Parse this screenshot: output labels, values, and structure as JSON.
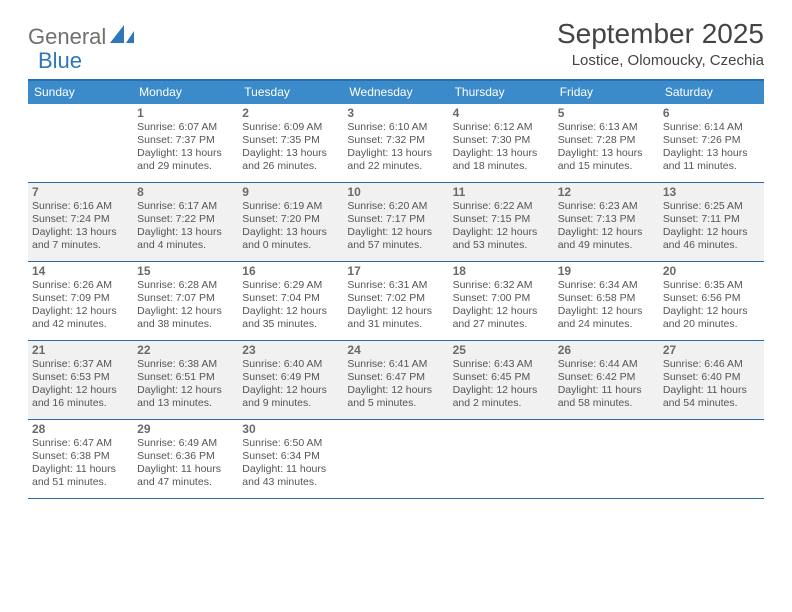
{
  "logo": {
    "part1": "General",
    "part2": "Blue"
  },
  "title": "September 2025",
  "location": "Lostice, Olomoucky, Czechia",
  "colors": {
    "headerBar": "#3b8bca",
    "headerTopBorder": "#276fb5",
    "rowBorder": "#2a6aa5",
    "shaded": "#f1f1f2",
    "text": "#555555",
    "logoGray": "#707070",
    "logoBlue": "#2e77b8"
  },
  "weekdays": [
    "Sunday",
    "Monday",
    "Tuesday",
    "Wednesday",
    "Thursday",
    "Friday",
    "Saturday"
  ],
  "weeks": [
    {
      "shaded": false,
      "days": [
        {
          "n": "",
          "sr": "",
          "ss": "",
          "dl1": "",
          "dl2": ""
        },
        {
          "n": "1",
          "sr": "Sunrise: 6:07 AM",
          "ss": "Sunset: 7:37 PM",
          "dl1": "Daylight: 13 hours",
          "dl2": "and 29 minutes."
        },
        {
          "n": "2",
          "sr": "Sunrise: 6:09 AM",
          "ss": "Sunset: 7:35 PM",
          "dl1": "Daylight: 13 hours",
          "dl2": "and 26 minutes."
        },
        {
          "n": "3",
          "sr": "Sunrise: 6:10 AM",
          "ss": "Sunset: 7:32 PM",
          "dl1": "Daylight: 13 hours",
          "dl2": "and 22 minutes."
        },
        {
          "n": "4",
          "sr": "Sunrise: 6:12 AM",
          "ss": "Sunset: 7:30 PM",
          "dl1": "Daylight: 13 hours",
          "dl2": "and 18 minutes."
        },
        {
          "n": "5",
          "sr": "Sunrise: 6:13 AM",
          "ss": "Sunset: 7:28 PM",
          "dl1": "Daylight: 13 hours",
          "dl2": "and 15 minutes."
        },
        {
          "n": "6",
          "sr": "Sunrise: 6:14 AM",
          "ss": "Sunset: 7:26 PM",
          "dl1": "Daylight: 13 hours",
          "dl2": "and 11 minutes."
        }
      ]
    },
    {
      "shaded": true,
      "days": [
        {
          "n": "7",
          "sr": "Sunrise: 6:16 AM",
          "ss": "Sunset: 7:24 PM",
          "dl1": "Daylight: 13 hours",
          "dl2": "and 7 minutes."
        },
        {
          "n": "8",
          "sr": "Sunrise: 6:17 AM",
          "ss": "Sunset: 7:22 PM",
          "dl1": "Daylight: 13 hours",
          "dl2": "and 4 minutes."
        },
        {
          "n": "9",
          "sr": "Sunrise: 6:19 AM",
          "ss": "Sunset: 7:20 PM",
          "dl1": "Daylight: 13 hours",
          "dl2": "and 0 minutes."
        },
        {
          "n": "10",
          "sr": "Sunrise: 6:20 AM",
          "ss": "Sunset: 7:17 PM",
          "dl1": "Daylight: 12 hours",
          "dl2": "and 57 minutes."
        },
        {
          "n": "11",
          "sr": "Sunrise: 6:22 AM",
          "ss": "Sunset: 7:15 PM",
          "dl1": "Daylight: 12 hours",
          "dl2": "and 53 minutes."
        },
        {
          "n": "12",
          "sr": "Sunrise: 6:23 AM",
          "ss": "Sunset: 7:13 PM",
          "dl1": "Daylight: 12 hours",
          "dl2": "and 49 minutes."
        },
        {
          "n": "13",
          "sr": "Sunrise: 6:25 AM",
          "ss": "Sunset: 7:11 PM",
          "dl1": "Daylight: 12 hours",
          "dl2": "and 46 minutes."
        }
      ]
    },
    {
      "shaded": false,
      "days": [
        {
          "n": "14",
          "sr": "Sunrise: 6:26 AM",
          "ss": "Sunset: 7:09 PM",
          "dl1": "Daylight: 12 hours",
          "dl2": "and 42 minutes."
        },
        {
          "n": "15",
          "sr": "Sunrise: 6:28 AM",
          "ss": "Sunset: 7:07 PM",
          "dl1": "Daylight: 12 hours",
          "dl2": "and 38 minutes."
        },
        {
          "n": "16",
          "sr": "Sunrise: 6:29 AM",
          "ss": "Sunset: 7:04 PM",
          "dl1": "Daylight: 12 hours",
          "dl2": "and 35 minutes."
        },
        {
          "n": "17",
          "sr": "Sunrise: 6:31 AM",
          "ss": "Sunset: 7:02 PM",
          "dl1": "Daylight: 12 hours",
          "dl2": "and 31 minutes."
        },
        {
          "n": "18",
          "sr": "Sunrise: 6:32 AM",
          "ss": "Sunset: 7:00 PM",
          "dl1": "Daylight: 12 hours",
          "dl2": "and 27 minutes."
        },
        {
          "n": "19",
          "sr": "Sunrise: 6:34 AM",
          "ss": "Sunset: 6:58 PM",
          "dl1": "Daylight: 12 hours",
          "dl2": "and 24 minutes."
        },
        {
          "n": "20",
          "sr": "Sunrise: 6:35 AM",
          "ss": "Sunset: 6:56 PM",
          "dl1": "Daylight: 12 hours",
          "dl2": "and 20 minutes."
        }
      ]
    },
    {
      "shaded": true,
      "days": [
        {
          "n": "21",
          "sr": "Sunrise: 6:37 AM",
          "ss": "Sunset: 6:53 PM",
          "dl1": "Daylight: 12 hours",
          "dl2": "and 16 minutes."
        },
        {
          "n": "22",
          "sr": "Sunrise: 6:38 AM",
          "ss": "Sunset: 6:51 PM",
          "dl1": "Daylight: 12 hours",
          "dl2": "and 13 minutes."
        },
        {
          "n": "23",
          "sr": "Sunrise: 6:40 AM",
          "ss": "Sunset: 6:49 PM",
          "dl1": "Daylight: 12 hours",
          "dl2": "and 9 minutes."
        },
        {
          "n": "24",
          "sr": "Sunrise: 6:41 AM",
          "ss": "Sunset: 6:47 PM",
          "dl1": "Daylight: 12 hours",
          "dl2": "and 5 minutes."
        },
        {
          "n": "25",
          "sr": "Sunrise: 6:43 AM",
          "ss": "Sunset: 6:45 PM",
          "dl1": "Daylight: 12 hours",
          "dl2": "and 2 minutes."
        },
        {
          "n": "26",
          "sr": "Sunrise: 6:44 AM",
          "ss": "Sunset: 6:42 PM",
          "dl1": "Daylight: 11 hours",
          "dl2": "and 58 minutes."
        },
        {
          "n": "27",
          "sr": "Sunrise: 6:46 AM",
          "ss": "Sunset: 6:40 PM",
          "dl1": "Daylight: 11 hours",
          "dl2": "and 54 minutes."
        }
      ]
    },
    {
      "shaded": false,
      "days": [
        {
          "n": "28",
          "sr": "Sunrise: 6:47 AM",
          "ss": "Sunset: 6:38 PM",
          "dl1": "Daylight: 11 hours",
          "dl2": "and 51 minutes."
        },
        {
          "n": "29",
          "sr": "Sunrise: 6:49 AM",
          "ss": "Sunset: 6:36 PM",
          "dl1": "Daylight: 11 hours",
          "dl2": "and 47 minutes."
        },
        {
          "n": "30",
          "sr": "Sunrise: 6:50 AM",
          "ss": "Sunset: 6:34 PM",
          "dl1": "Daylight: 11 hours",
          "dl2": "and 43 minutes."
        },
        {
          "n": "",
          "sr": "",
          "ss": "",
          "dl1": "",
          "dl2": ""
        },
        {
          "n": "",
          "sr": "",
          "ss": "",
          "dl1": "",
          "dl2": ""
        },
        {
          "n": "",
          "sr": "",
          "ss": "",
          "dl1": "",
          "dl2": ""
        },
        {
          "n": "",
          "sr": "",
          "ss": "",
          "dl1": "",
          "dl2": ""
        }
      ]
    }
  ]
}
